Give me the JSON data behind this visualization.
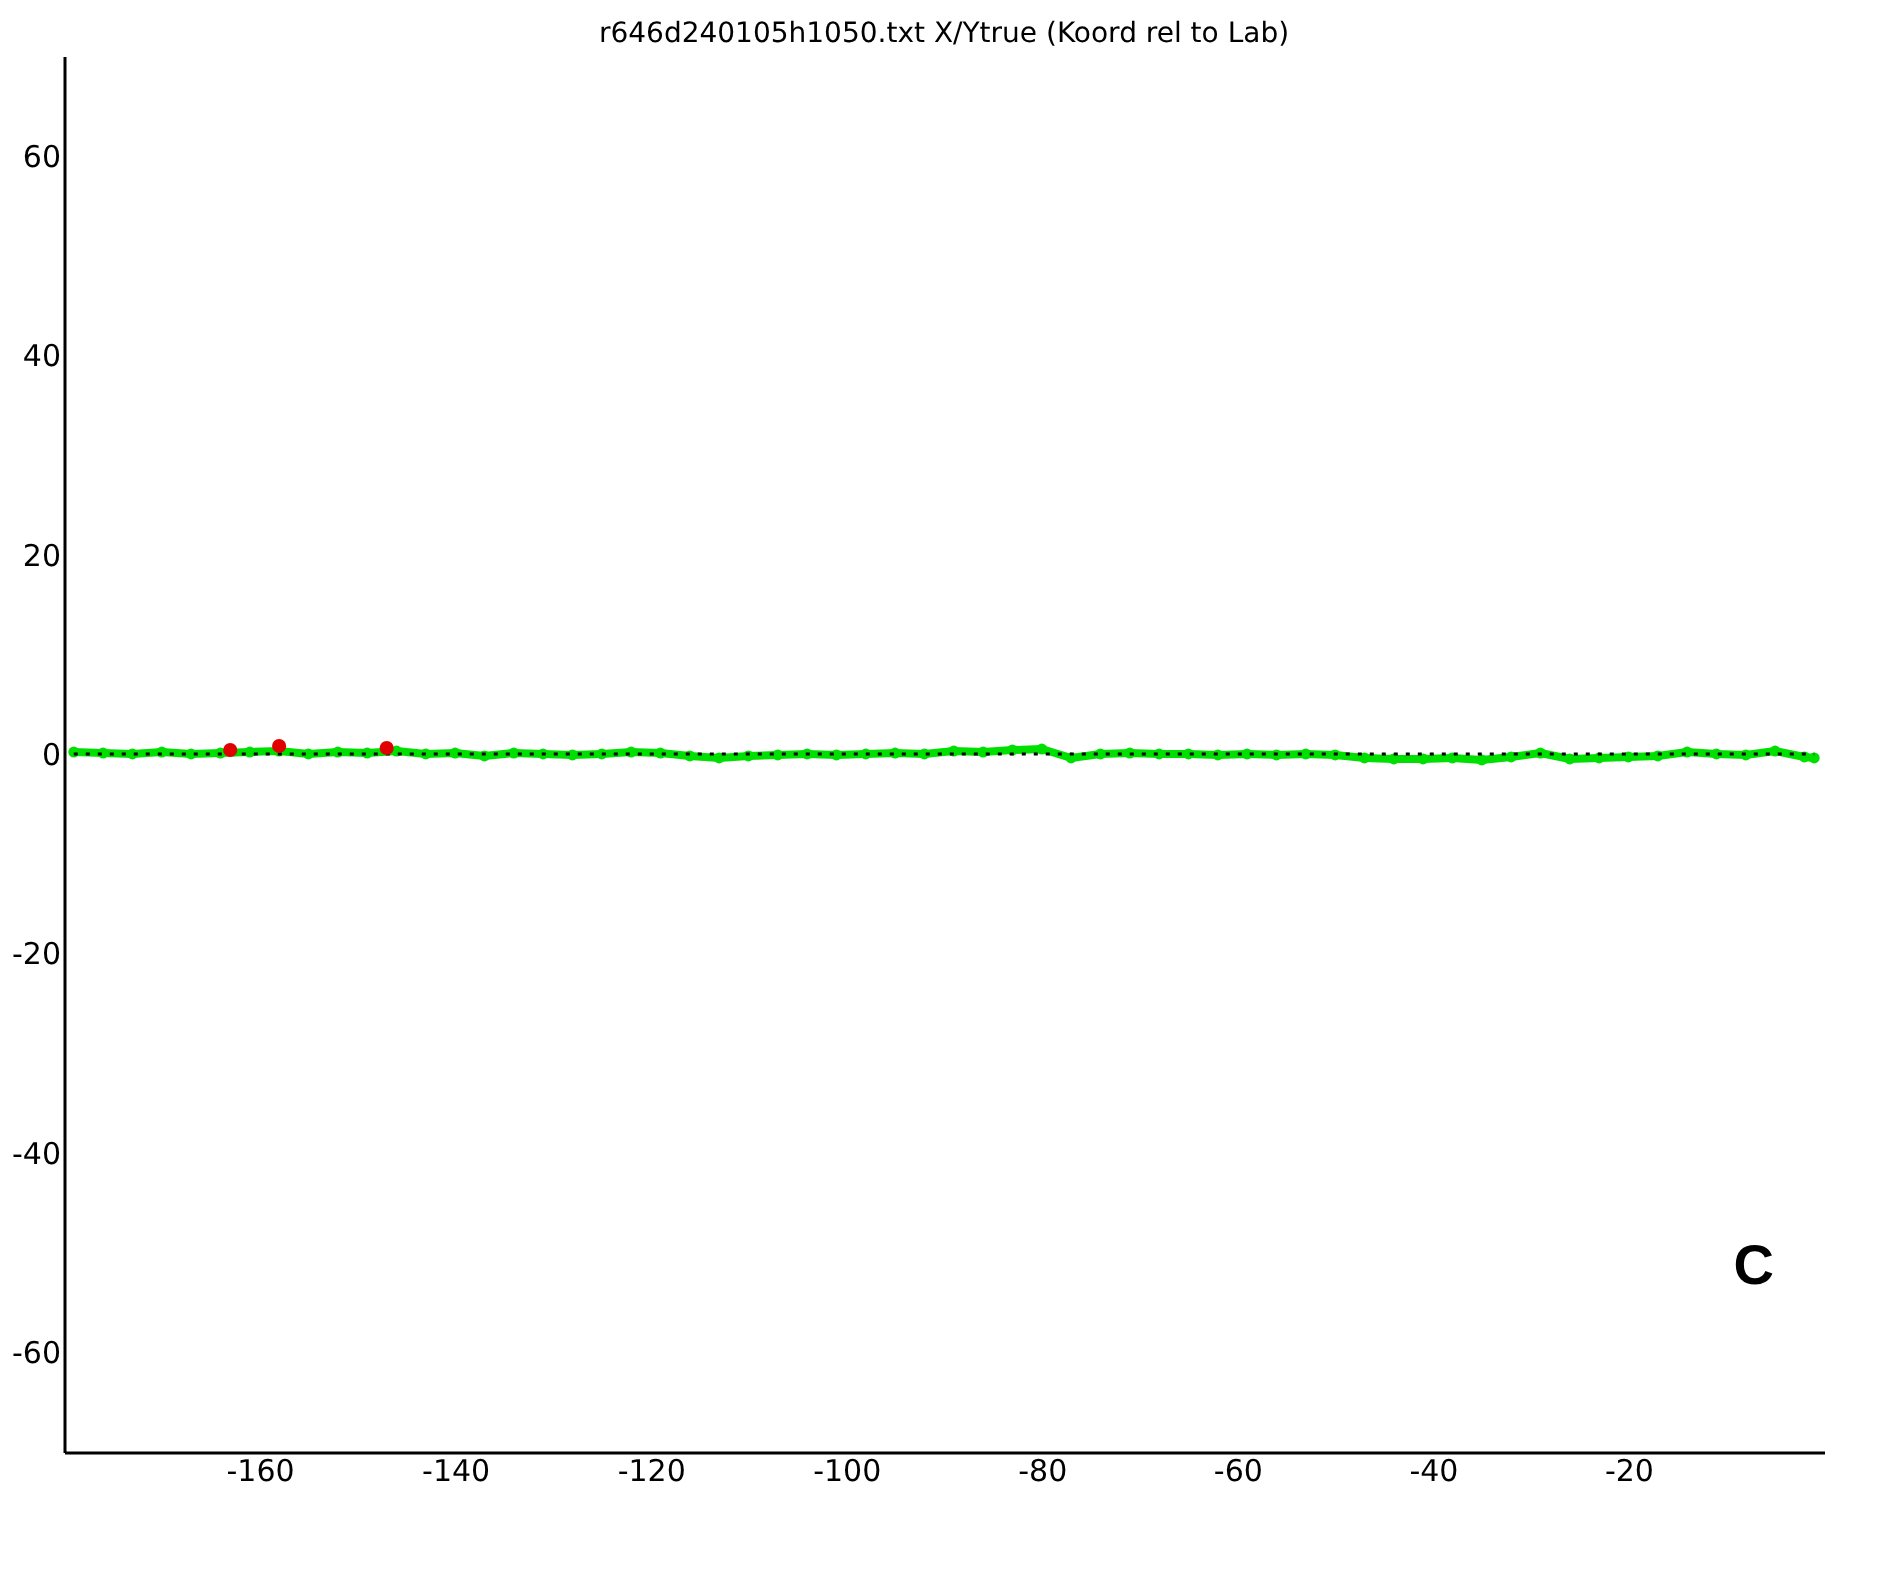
{
  "chart_data": {
    "type": "line",
    "title": "r646d240105h1050.txt  X/Ytrue (Koord rel to Lab)",
    "xlim": [
      -180,
      0
    ],
    "xticks": [
      -160,
      -140,
      -120,
      -100,
      -80,
      -60,
      -40,
      -20
    ],
    "ylim": [
      -70,
      70
    ],
    "yticks": [
      -60,
      -40,
      -20,
      0,
      20,
      40,
      60
    ],
    "grid": false,
    "annotations": [
      "C"
    ],
    "series": [
      {
        "line_style": "solid",
        "marker": "circle",
        "color": "#00e000",
        "x": [
          -179,
          -176,
          -173,
          -170,
          -167,
          -164,
          -161,
          -158,
          -155,
          -152,
          -149,
          -146,
          -143,
          -140,
          -137,
          -134,
          -131,
          -128,
          -125,
          -122,
          -119,
          -116,
          -113,
          -110,
          -107,
          -104,
          -101,
          -98,
          -95,
          -92,
          -89,
          -86,
          -83,
          -80,
          -77,
          -74,
          -71,
          -68,
          -65,
          -62,
          -59,
          -56,
          -53,
          -50,
          -47,
          -44,
          -41,
          -38,
          -35,
          -32,
          -29,
          -26,
          -23,
          -20,
          -17,
          -14,
          -11,
          -8,
          -5,
          -2,
          -1
        ],
        "values": [
          0.2,
          0.1,
          0,
          0.2,
          0,
          0.1,
          0.2,
          0.3,
          0,
          0.2,
          0.1,
          0.3,
          0,
          0.1,
          -0.2,
          0.1,
          0,
          -0.1,
          0,
          0.2,
          0.1,
          -0.2,
          -0.4,
          -0.2,
          -0.1,
          0,
          -0.1,
          0,
          0.1,
          0,
          0.3,
          0.2,
          0.4,
          0.5,
          -0.4,
          0,
          0.1,
          0,
          0,
          -0.1,
          0,
          -0.1,
          0,
          -0.1,
          -0.4,
          -0.5,
          -0.5,
          -0.4,
          -0.6,
          -0.3,
          0.1,
          -0.5,
          -0.4,
          -0.3,
          -0.2,
          0.2,
          0,
          -0.1,
          0.3,
          -0.3,
          -0.4
        ]
      },
      {
        "line_style": "dotted",
        "marker": "none",
        "color": "#000000",
        "x": [
          -179,
          -1
        ],
        "values": [
          0,
          0
        ]
      },
      {
        "type": "scatter",
        "marker": "circle",
        "color": "#e00000",
        "x": [
          -163,
          -158,
          -147
        ],
        "values": [
          0.4,
          0.8,
          0.6
        ]
      }
    ]
  }
}
